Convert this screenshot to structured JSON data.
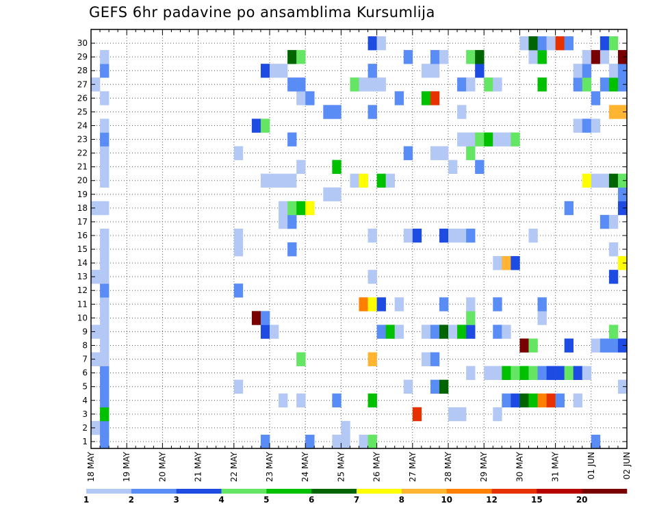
{
  "chart_data": {
    "type": "heatmap",
    "title": "GEFS 6hr padavine po ansamblima Kursumlija",
    "x_tick_labels": [
      "18 MAY",
      "19 MAY",
      "20 MAY",
      "21 MAY",
      "22 MAY",
      "23 MAY",
      "24 MAY",
      "25 MAY",
      "26 MAY",
      "27 MAY",
      "28 MAY",
      "29 MAY",
      "30 MAY",
      "31 MAY",
      "01 JUN",
      "02 JUN"
    ],
    "x_time_steps_per_day": 4,
    "y_tick_labels": [
      "1",
      "2",
      "3",
      "4",
      "5",
      "6",
      "7",
      "8",
      "9",
      "10",
      "11",
      "12",
      "13",
      "14",
      "15",
      "16",
      "17",
      "18",
      "19",
      "20",
      "21",
      "22",
      "23",
      "24",
      "25",
      "26",
      "27",
      "28",
      "29",
      "30"
    ],
    "grid": true,
    "colorbar": {
      "boundary_labels": [
        "1",
        "2",
        "3",
        "4",
        "5",
        "6",
        "7",
        "8",
        "10",
        "12",
        "15",
        "20"
      ],
      "colors": [
        "#b4c8f5",
        "#5a8cf5",
        "#1e4be1",
        "#64e664",
        "#00c000",
        "#006400",
        "#ffff00",
        "#ffb432",
        "#ff8000",
        "#e63200",
        "#b40000",
        "#780000"
      ]
    },
    "members": [
      {
        "member": 1,
        "cells": [
          [
            1,
            2
          ],
          [
            19,
            2
          ],
          [
            24,
            2
          ],
          [
            27,
            1
          ],
          [
            28,
            1
          ],
          [
            30,
            1
          ],
          [
            31,
            4
          ],
          [
            56,
            2
          ]
        ]
      },
      {
        "member": 2,
        "cells": [
          [
            0,
            1
          ],
          [
            1,
            2
          ],
          [
            28,
            1
          ]
        ]
      },
      {
        "member": 3,
        "cells": [
          [
            1,
            5
          ],
          [
            36,
            10
          ],
          [
            40,
            1
          ],
          [
            41,
            1
          ],
          [
            45,
            1
          ]
        ]
      },
      {
        "member": 4,
        "cells": [
          [
            1,
            2
          ],
          [
            21,
            1
          ],
          [
            23,
            1
          ],
          [
            27,
            2
          ],
          [
            31,
            5
          ],
          [
            46,
            2
          ],
          [
            47,
            3
          ],
          [
            48,
            6
          ],
          [
            49,
            5
          ],
          [
            50,
            9
          ],
          [
            51,
            10
          ],
          [
            52,
            2
          ],
          [
            54,
            1
          ]
        ]
      },
      {
        "member": 5,
        "cells": [
          [
            1,
            2
          ],
          [
            16,
            1
          ],
          [
            35,
            1
          ],
          [
            38,
            2
          ],
          [
            39,
            6
          ],
          [
            59,
            1
          ]
        ]
      },
      {
        "member": 6,
        "cells": [
          [
            1,
            2
          ],
          [
            42,
            1
          ],
          [
            44,
            1
          ],
          [
            45,
            1
          ],
          [
            46,
            5
          ],
          [
            47,
            4
          ],
          [
            48,
            5
          ],
          [
            49,
            4
          ],
          [
            50,
            2
          ],
          [
            51,
            3
          ],
          [
            52,
            3
          ],
          [
            53,
            4
          ],
          [
            54,
            3
          ],
          [
            55,
            1
          ]
        ]
      },
      {
        "member": 7,
        "cells": [
          [
            0,
            1
          ],
          [
            1,
            1
          ],
          [
            23,
            4
          ],
          [
            31,
            8
          ],
          [
            37,
            1
          ],
          [
            38,
            2
          ]
        ]
      },
      {
        "member": 8,
        "cells": [
          [
            1,
            1
          ],
          [
            48,
            12
          ],
          [
            49,
            4
          ],
          [
            53,
            3
          ],
          [
            56,
            1
          ],
          [
            57,
            2
          ],
          [
            58,
            2
          ],
          [
            59,
            3
          ]
        ]
      },
      {
        "member": 9,
        "cells": [
          [
            0,
            1
          ],
          [
            1,
            1
          ],
          [
            19,
            3
          ],
          [
            20,
            1
          ],
          [
            32,
            2
          ],
          [
            33,
            5
          ],
          [
            34,
            1
          ],
          [
            37,
            1
          ],
          [
            38,
            2
          ],
          [
            39,
            6
          ],
          [
            40,
            1
          ],
          [
            41,
            5
          ],
          [
            42,
            3
          ],
          [
            45,
            2
          ],
          [
            46,
            1
          ],
          [
            58,
            4
          ]
        ]
      },
      {
        "member": 10,
        "cells": [
          [
            1,
            1
          ],
          [
            18,
            12
          ],
          [
            19,
            2
          ],
          [
            42,
            4
          ],
          [
            50,
            1
          ]
        ]
      },
      {
        "member": 11,
        "cells": [
          [
            1,
            1
          ],
          [
            30,
            9
          ],
          [
            31,
            7
          ],
          [
            32,
            3
          ],
          [
            34,
            1
          ],
          [
            39,
            2
          ],
          [
            42,
            1
          ],
          [
            45,
            2
          ],
          [
            50,
            2
          ]
        ]
      },
      {
        "member": 12,
        "cells": [
          [
            1,
            2
          ],
          [
            16,
            2
          ]
        ]
      },
      {
        "member": 13,
        "cells": [
          [
            0,
            1
          ],
          [
            1,
            1
          ],
          [
            31,
            1
          ],
          [
            58,
            3
          ]
        ]
      },
      {
        "member": 14,
        "cells": [
          [
            1,
            1
          ],
          [
            45,
            1
          ],
          [
            46,
            8
          ],
          [
            47,
            3
          ],
          [
            59,
            7
          ]
        ]
      },
      {
        "member": 15,
        "cells": [
          [
            1,
            1
          ],
          [
            16,
            1
          ],
          [
            22,
            2
          ],
          [
            58,
            1
          ]
        ]
      },
      {
        "member": 16,
        "cells": [
          [
            1,
            1
          ],
          [
            16,
            1
          ],
          [
            31,
            1
          ],
          [
            35,
            1
          ],
          [
            36,
            3
          ],
          [
            39,
            3
          ],
          [
            40,
            1
          ],
          [
            41,
            1
          ],
          [
            42,
            2
          ],
          [
            49,
            1
          ]
        ]
      },
      {
        "member": 17,
        "cells": [
          [
            21,
            1
          ],
          [
            22,
            2
          ],
          [
            57,
            2
          ],
          [
            58,
            1
          ]
        ]
      },
      {
        "member": 18,
        "cells": [
          [
            0,
            1
          ],
          [
            1,
            1
          ],
          [
            21,
            1
          ],
          [
            22,
            4
          ],
          [
            23,
            5
          ],
          [
            24,
            7
          ],
          [
            53,
            2
          ],
          [
            59,
            3
          ]
        ]
      },
      {
        "member": 19,
        "cells": [
          [
            26,
            1
          ],
          [
            27,
            1
          ],
          [
            59,
            2
          ]
        ]
      },
      {
        "member": 20,
        "cells": [
          [
            1,
            1
          ],
          [
            19,
            1
          ],
          [
            20,
            1
          ],
          [
            21,
            1
          ],
          [
            22,
            1
          ],
          [
            29,
            1
          ],
          [
            30,
            7
          ],
          [
            32,
            5
          ],
          [
            33,
            1
          ],
          [
            55,
            7
          ],
          [
            56,
            1
          ],
          [
            57,
            1
          ],
          [
            58,
            6
          ],
          [
            59,
            4
          ]
        ]
      },
      {
        "member": 21,
        "cells": [
          [
            1,
            1
          ],
          [
            23,
            1
          ],
          [
            27,
            5
          ],
          [
            40,
            1
          ],
          [
            43,
            2
          ]
        ]
      },
      {
        "member": 22,
        "cells": [
          [
            1,
            1
          ],
          [
            16,
            1
          ],
          [
            35,
            2
          ],
          [
            38,
            1
          ],
          [
            39,
            1
          ],
          [
            42,
            4
          ]
        ]
      },
      {
        "member": 23,
        "cells": [
          [
            1,
            2
          ],
          [
            22,
            2
          ],
          [
            41,
            1
          ],
          [
            42,
            1
          ],
          [
            43,
            4
          ],
          [
            44,
            5
          ],
          [
            45,
            1
          ],
          [
            46,
            1
          ],
          [
            47,
            4
          ]
        ]
      },
      {
        "member": 24,
        "cells": [
          [
            1,
            1
          ],
          [
            18,
            3
          ],
          [
            19,
            4
          ],
          [
            54,
            1
          ],
          [
            55,
            2
          ],
          [
            56,
            1
          ]
        ]
      },
      {
        "member": 25,
        "cells": [
          [
            26,
            2
          ],
          [
            27,
            2
          ],
          [
            31,
            2
          ],
          [
            41,
            1
          ],
          [
            58,
            8
          ],
          [
            59,
            8
          ]
        ]
      },
      {
        "member": 26,
        "cells": [
          [
            1,
            1
          ],
          [
            23,
            1
          ],
          [
            24,
            2
          ],
          [
            34,
            2
          ],
          [
            37,
            5
          ],
          [
            38,
            10
          ],
          [
            56,
            2
          ]
        ]
      },
      {
        "member": 27,
        "cells": [
          [
            0,
            1
          ],
          [
            22,
            2
          ],
          [
            23,
            2
          ],
          [
            29,
            4
          ],
          [
            30,
            1
          ],
          [
            31,
            1
          ],
          [
            32,
            1
          ],
          [
            41,
            2
          ],
          [
            42,
            1
          ],
          [
            44,
            4
          ],
          [
            45,
            1
          ],
          [
            50,
            5
          ],
          [
            54,
            2
          ],
          [
            55,
            4
          ],
          [
            57,
            2
          ],
          [
            58,
            5
          ],
          [
            59,
            2
          ]
        ]
      },
      {
        "member": 28,
        "cells": [
          [
            1,
            2
          ],
          [
            19,
            3
          ],
          [
            20,
            1
          ],
          [
            21,
            1
          ],
          [
            31,
            2
          ],
          [
            37,
            1
          ],
          [
            38,
            1
          ],
          [
            43,
            3
          ],
          [
            54,
            1
          ],
          [
            55,
            2
          ],
          [
            58,
            1
          ],
          [
            59,
            2
          ]
        ]
      },
      {
        "member": 29,
        "cells": [
          [
            1,
            1
          ],
          [
            22,
            6
          ],
          [
            23,
            4
          ],
          [
            35,
            2
          ],
          [
            38,
            2
          ],
          [
            39,
            1
          ],
          [
            42,
            4
          ],
          [
            43,
            6
          ],
          [
            49,
            1
          ],
          [
            50,
            5
          ],
          [
            55,
            1
          ],
          [
            56,
            12
          ],
          [
            57,
            1
          ],
          [
            59,
            12
          ]
        ]
      },
      {
        "member": 30,
        "cells": [
          [
            31,
            3
          ],
          [
            32,
            1
          ],
          [
            48,
            1
          ],
          [
            49,
            6
          ],
          [
            50,
            2
          ],
          [
            51,
            1
          ],
          [
            52,
            10
          ],
          [
            53,
            2
          ],
          [
            57,
            3
          ],
          [
            58,
            4
          ]
        ]
      }
    ]
  }
}
